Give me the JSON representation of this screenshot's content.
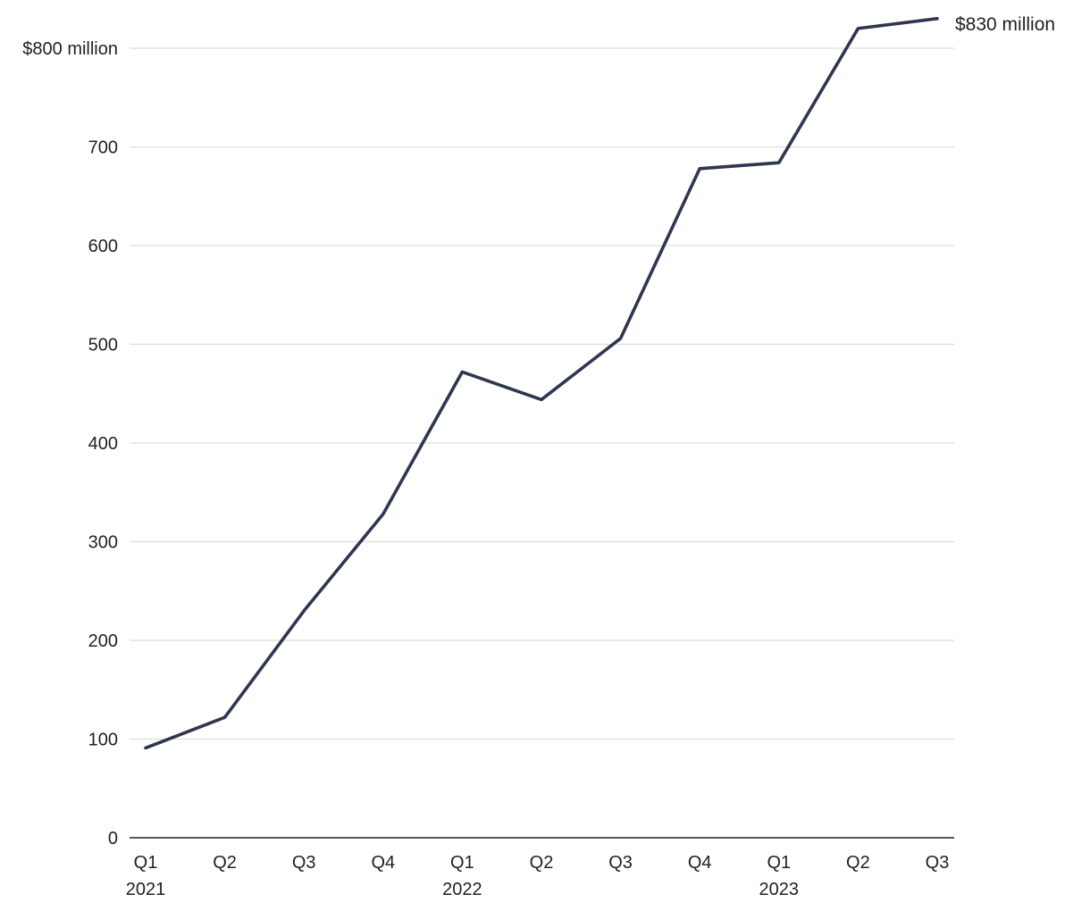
{
  "chart_data": {
    "type": "line",
    "title": "",
    "xlabel": "",
    "ylabel": "",
    "categories": [
      "Q1",
      "Q2",
      "Q3",
      "Q4",
      "Q1",
      "Q2",
      "Q3",
      "Q4",
      "Q1",
      "Q2",
      "Q3"
    ],
    "year_labels": [
      {
        "index": 0,
        "label": "2021"
      },
      {
        "index": 4,
        "label": "2022"
      },
      {
        "index": 8,
        "label": "2023"
      }
    ],
    "series": [
      {
        "values": [
          91,
          122,
          230,
          328,
          472,
          444,
          506,
          678,
          684,
          820,
          830
        ]
      }
    ],
    "ylim": [
      0,
      800
    ],
    "yticks": [
      0,
      100,
      200,
      300,
      400,
      500,
      600,
      700,
      800
    ],
    "ytick_labels": [
      "0",
      "100",
      "200",
      "300",
      "400",
      "500",
      "600",
      "700",
      "$800 million"
    ],
    "end_label": "$830 million",
    "grid": true,
    "line_color": "#2f3650",
    "grid_color": "#dedede"
  }
}
